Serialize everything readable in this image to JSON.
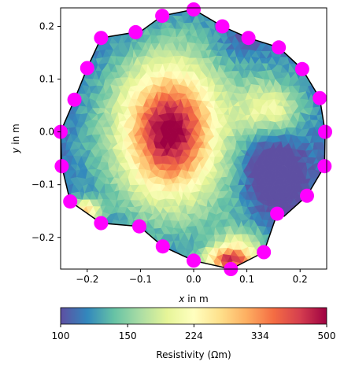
{
  "chart_data": {
    "type": "heatmap",
    "title": "",
    "xlabel": "x in m",
    "xlabel_var": "x",
    "xlabel_unit": "in m",
    "ylabel": "y in m",
    "ylabel_var": "y",
    "ylabel_unit": "in m",
    "xlim": [
      -0.25,
      0.25
    ],
    "ylim": [
      -0.26,
      0.235
    ],
    "xticks": [
      -0.2,
      -0.1,
      0.0,
      0.1,
      0.2
    ],
    "xtick_labels": [
      "−0.2",
      "−0.1",
      "0.0",
      "0.1",
      "0.2"
    ],
    "yticks": [
      0.2,
      0.1,
      0.0,
      -0.1,
      -0.2
    ],
    "ytick_labels": [
      "0.2",
      "0.1",
      "0.0",
      "−0.1",
      "−0.2"
    ],
    "colorbar": {
      "label": "Resistivity (Ωm)",
      "scale": "log",
      "range": [
        100,
        500
      ],
      "ticks": [
        100,
        150,
        224,
        334,
        500
      ],
      "tick_labels": [
        "100",
        "150",
        "224",
        "334",
        "500"
      ],
      "colormap": "Spectral_r",
      "stops": [
        "#5e4fa2",
        "#3288bd",
        "#66c2a5",
        "#abdda4",
        "#e6f598",
        "#ffffbf",
        "#fee08b",
        "#fdae61",
        "#f46d43",
        "#d53e4f",
        "#9e0142"
      ]
    },
    "electrode_color": "#ff00ff",
    "boundary_color": "#000000",
    "electrodes": [
      {
        "x": 0.0,
        "y": 0.232
      },
      {
        "x": 0.054,
        "y": 0.2
      },
      {
        "x": 0.103,
        "y": 0.178
      },
      {
        "x": 0.16,
        "y": 0.16
      },
      {
        "x": 0.204,
        "y": 0.119
      },
      {
        "x": 0.237,
        "y": 0.064
      },
      {
        "x": 0.247,
        "y": 0.0
      },
      {
        "x": 0.246,
        "y": -0.065
      },
      {
        "x": 0.213,
        "y": -0.121
      },
      {
        "x": 0.157,
        "y": -0.155
      },
      {
        "x": 0.132,
        "y": -0.228
      },
      {
        "x": 0.07,
        "y": -0.26
      },
      {
        "x": 0.0,
        "y": -0.244
      },
      {
        "x": -0.058,
        "y": -0.217
      },
      {
        "x": -0.102,
        "y": -0.179
      },
      {
        "x": -0.174,
        "y": -0.173
      },
      {
        "x": -0.232,
        "y": -0.132
      },
      {
        "x": -0.248,
        "y": -0.065
      },
      {
        "x": -0.25,
        "y": 0.0
      },
      {
        "x": -0.224,
        "y": 0.061
      },
      {
        "x": -0.2,
        "y": 0.121
      },
      {
        "x": -0.174,
        "y": 0.178
      },
      {
        "x": -0.109,
        "y": 0.189
      },
      {
        "x": -0.059,
        "y": 0.22
      }
    ],
    "boundary_extra": [
      {
        "x": -0.1,
        "y": 0.19
      },
      {
        "x": 0.17,
        "y": -0.16
      }
    ]
  }
}
